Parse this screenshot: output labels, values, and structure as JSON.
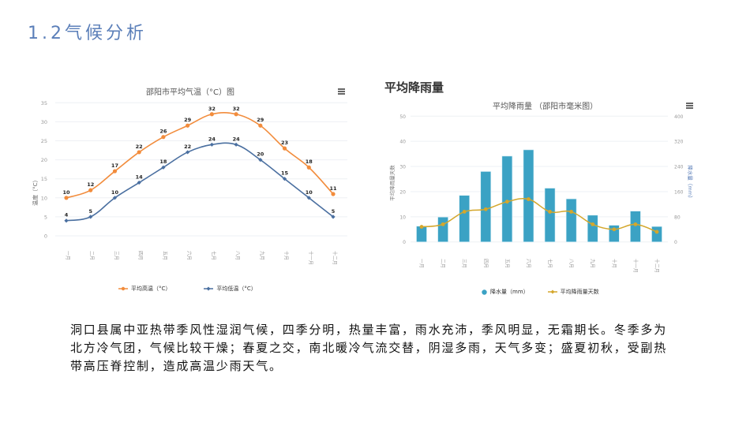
{
  "page": {
    "title": "1.2气候分析"
  },
  "temp_chart": {
    "title": "邵阳市平均气温（°C）图",
    "ylabel": "温度（°C）",
    "legend": [
      "平均高温（°C）",
      "平均低温（°C）"
    ]
  },
  "rain_section": {
    "title": "平均降雨量"
  },
  "rain_chart": {
    "title": "平均降雨量 （邵阳市毫米图）",
    "ylabel_left": "平均降雨量天数",
    "ylabel_right": "降水量（mm）",
    "legend": [
      "降水量（mm）",
      "平均降雨量天数"
    ]
  },
  "paragraph": "洞口县属中亚热带季风性湿润气候，四季分明，热量丰富，雨水充沛，季风明显，无霜期长。冬季多为北方冷气团，气候比较干燥；春夏之交，南北暖冷气流交替，阴湿多雨，天气多变；盛夏初秋，受副热带高压脊控制，造成高温少雨天气。",
  "colors": {
    "title": "#5b7fb9",
    "high": "#f28c3c",
    "low": "#4a6fa0",
    "bar": "#3ba2c4",
    "line": "#d4a72c",
    "grid": "#eef0f4"
  },
  "chart_data": [
    {
      "type": "line",
      "title": "邵阳市平均气温（°C）图",
      "xlabel": "",
      "ylabel": "温度（°C）",
      "categories": [
        "一月",
        "二月",
        "三月",
        "四月",
        "五月",
        "六月",
        "七月",
        "八月",
        "九月",
        "十月",
        "十一月",
        "十二月"
      ],
      "series": [
        {
          "name": "平均高温（°C）",
          "values": [
            10,
            12,
            17,
            22,
            26,
            29,
            32,
            32,
            29,
            23,
            18,
            11
          ]
        },
        {
          "name": "平均低温（°C）",
          "values": [
            4,
            5,
            10,
            14,
            18,
            22,
            24,
            24,
            20,
            15,
            10,
            5
          ]
        }
      ],
      "ylim": [
        0,
        35
      ],
      "yticks": [
        0,
        5,
        10,
        15,
        20,
        25,
        30,
        35
      ],
      "legend_position": "bottom",
      "grid": true
    },
    {
      "type": "bar",
      "title": "平均降雨量 （邵阳市毫米图）",
      "xlabel": "",
      "ylabel": "平均降雨量天数",
      "ylabel_right": "降水量（mm）",
      "categories": [
        "一月",
        "二月",
        "三月",
        "四月",
        "五月",
        "六月",
        "七月",
        "八月",
        "九月",
        "十月",
        "十一月",
        "十二月"
      ],
      "series": [
        {
          "name": "降水量（mm）",
          "type": "bar",
          "axis": "right",
          "values": [
            50,
            79,
            148,
            224,
            273,
            293,
            171,
            137,
            85,
            53,
            98,
            49
          ]
        },
        {
          "name": "平均降雨量天数",
          "type": "line",
          "axis": "left",
          "values": [
            6,
            7,
            12,
            13,
            16,
            17,
            12,
            12,
            7,
            5,
            7,
            4
          ]
        }
      ],
      "ylim": [
        0,
        50
      ],
      "ylim_right": [
        0,
        400
      ],
      "yticks": [
        0,
        10,
        20,
        30,
        40,
        50
      ],
      "yticks_right": [
        0,
        80,
        160,
        240,
        320,
        400
      ],
      "legend_position": "bottom",
      "grid": true
    }
  ]
}
